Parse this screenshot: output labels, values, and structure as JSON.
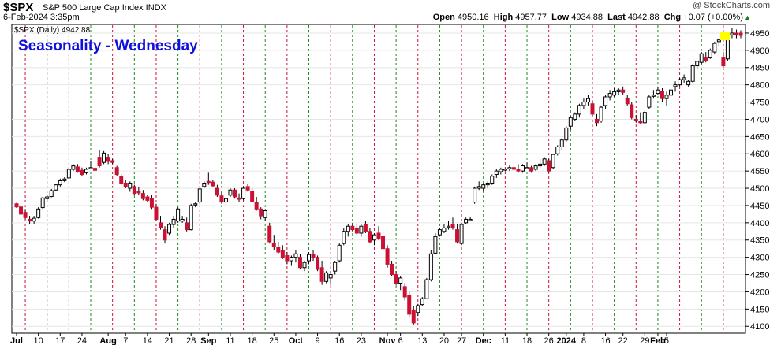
{
  "header": {
    "symbol": "$SPX",
    "description": "S&P 500 Large Cap Index  INDX",
    "watermark": "@ StockCharts.com",
    "date": "6-Feb-2024 3:35pm",
    "open_label": "Open",
    "open": "4950.16",
    "high_label": "High",
    "high": "4957.77",
    "low_label": "Low",
    "low": "4934.88",
    "last_label": "Last",
    "last": "4942.88",
    "chg_label": "Chg",
    "chg": "+0.07 (+0.00%)",
    "chg_icon": "up-triangle-icon"
  },
  "chart_data": {
    "type": "candlestick",
    "title": "Seasonality - Wednesday",
    "legend": "$SPX (Daily) 4942.88",
    "y_ticks": [
      4100,
      4150,
      4200,
      4250,
      4300,
      4350,
      4400,
      4450,
      4500,
      4550,
      4600,
      4650,
      4700,
      4750,
      4800,
      4850,
      4900,
      4950
    ],
    "ylim": [
      4080,
      4975
    ],
    "x_tick_labels": [
      {
        "label": "Jul",
        "bold": true,
        "i": 0
      },
      {
        "label": "10",
        "i": 5
      },
      {
        "label": "17",
        "i": 10
      },
      {
        "label": "24",
        "i": 15
      },
      {
        "label": "Aug",
        "bold": true,
        "i": 21
      },
      {
        "label": "7",
        "i": 25
      },
      {
        "label": "14",
        "i": 30
      },
      {
        "label": "21",
        "i": 35
      },
      {
        "label": "28",
        "i": 40
      },
      {
        "label": "Sep",
        "bold": true,
        "i": 44
      },
      {
        "label": "11",
        "i": 49
      },
      {
        "label": "18",
        "i": 54
      },
      {
        "label": "25",
        "i": 59
      },
      {
        "label": "Oct",
        "bold": true,
        "i": 64
      },
      {
        "label": "9",
        "i": 69
      },
      {
        "label": "16",
        "i": 74
      },
      {
        "label": "23",
        "i": 79
      },
      {
        "label": "Nov",
        "bold": true,
        "i": 85
      },
      {
        "label": "6",
        "i": 88
      },
      {
        "label": "13",
        "i": 93
      },
      {
        "label": "20",
        "i": 98
      },
      {
        "label": "27",
        "i": 102
      },
      {
        "label": "Dec",
        "bold": true,
        "i": 107
      },
      {
        "label": "11",
        "i": 112
      },
      {
        "label": "18",
        "i": 117
      },
      {
        "label": "26",
        "i": 122
      },
      {
        "label": "2024",
        "bold": true,
        "i": 126
      },
      {
        "label": "8",
        "i": 130
      },
      {
        "label": "16",
        "i": 135
      },
      {
        "label": "22",
        "i": 139
      },
      {
        "label": "29",
        "i": 144
      },
      {
        "label": "Feb",
        "bold": true,
        "i": 147
      },
      {
        "label": "5",
        "i": 149
      }
    ],
    "wednesday_colors": {
      "down": "#cc1133",
      "up": "#1a8a1a"
    },
    "candles": [
      [
        4455,
        4458,
        4443,
        4446
      ],
      [
        4446,
        4450,
        4420,
        4425
      ],
      [
        4430,
        4440,
        4410,
        4415
      ],
      [
        4410,
        4420,
        4395,
        4405
      ],
      [
        4405,
        4420,
        4395,
        4413
      ],
      [
        4415,
        4445,
        4412,
        4440
      ],
      [
        4444,
        4475,
        4440,
        4472
      ],
      [
        4470,
        4480,
        4465,
        4475
      ],
      [
        4476,
        4498,
        4474,
        4493
      ],
      [
        4495,
        4512,
        4493,
        4510
      ],
      [
        4510,
        4528,
        4505,
        4522
      ],
      [
        4522,
        4532,
        4518,
        4527
      ],
      [
        4530,
        4560,
        4528,
        4555
      ],
      [
        4555,
        4570,
        4550,
        4565
      ],
      [
        4562,
        4570,
        4545,
        4548
      ],
      [
        4552,
        4560,
        4535,
        4540
      ],
      [
        4545,
        4560,
        4540,
        4555
      ],
      [
        4560,
        4578,
        4555,
        4560
      ],
      [
        4558,
        4570,
        4545,
        4552
      ],
      [
        4590,
        4610,
        4560,
        4565
      ],
      [
        4575,
        4608,
        4570,
        4602
      ],
      [
        4590,
        4600,
        4570,
        4578
      ],
      [
        4580,
        4585,
        4570,
        4575
      ],
      [
        4560,
        4565,
        4535,
        4540
      ],
      [
        4535,
        4540,
        4510,
        4515
      ],
      [
        4515,
        4525,
        4500,
        4505
      ],
      [
        4500,
        4520,
        4490,
        4515
      ],
      [
        4505,
        4510,
        4480,
        4485
      ],
      [
        4490,
        4505,
        4480,
        4487
      ],
      [
        4485,
        4495,
        4465,
        4470
      ],
      [
        4475,
        4480,
        4460,
        4465
      ],
      [
        4470,
        4480,
        4440,
        4445
      ],
      [
        4445,
        4455,
        4405,
        4410
      ],
      [
        4400,
        4420,
        4380,
        4385
      ],
      [
        4380,
        4390,
        4340,
        4350
      ],
      [
        4370,
        4400,
        4365,
        4395
      ],
      [
        4395,
        4420,
        4385,
        4410
      ],
      [
        4405,
        4445,
        4400,
        4440
      ],
      [
        4405,
        4420,
        4400,
        4410
      ],
      [
        4400,
        4415,
        4375,
        4380
      ],
      [
        4380,
        4455,
        4378,
        4450
      ],
      [
        4452,
        4460,
        4445,
        4455
      ],
      [
        4460,
        4500,
        4455,
        4498
      ],
      [
        4505,
        4520,
        4500,
        4515
      ],
      [
        4520,
        4545,
        4510,
        4518
      ],
      [
        4518,
        4525,
        4505,
        4507
      ],
      [
        4500,
        4510,
        4475,
        4480
      ],
      [
        4478,
        4490,
        4455,
        4460
      ],
      [
        4460,
        4475,
        4450,
        4470
      ],
      [
        4480,
        4500,
        4475,
        4495
      ],
      [
        4495,
        4500,
        4470,
        4475
      ],
      [
        4472,
        4485,
        4460,
        4468
      ],
      [
        4470,
        4505,
        4465,
        4500
      ],
      [
        4505,
        4512,
        4490,
        4495
      ],
      [
        4490,
        4500,
        4460,
        4462
      ],
      [
        4460,
        4475,
        4435,
        4440
      ],
      [
        4440,
        4445,
        4410,
        4420
      ],
      [
        4415,
        4440,
        4405,
        4435
      ],
      [
        4390,
        4400,
        4340,
        4345
      ],
      [
        4340,
        4365,
        4320,
        4330
      ],
      [
        4330,
        4345,
        4310,
        4315
      ],
      [
        4320,
        4335,
        4295,
        4300
      ],
      [
        4305,
        4315,
        4280,
        4290
      ],
      [
        4290,
        4305,
        4275,
        4300
      ],
      [
        4300,
        4320,
        4285,
        4310
      ],
      [
        4300,
        4310,
        4265,
        4270
      ],
      [
        4270,
        4290,
        4260,
        4285
      ],
      [
        4290,
        4315,
        4280,
        4308
      ],
      [
        4308,
        4320,
        4290,
        4300
      ],
      [
        4300,
        4305,
        4260,
        4265
      ],
      [
        4270,
        4290,
        4220,
        4230
      ],
      [
        4230,
        4260,
        4225,
        4255
      ],
      [
        4240,
        4260,
        4220,
        4250
      ],
      [
        4260,
        4290,
        4250,
        4285
      ],
      [
        4290,
        4340,
        4285,
        4335
      ],
      [
        4340,
        4385,
        4335,
        4375
      ],
      [
        4375,
        4395,
        4360,
        4390
      ],
      [
        4390,
        4400,
        4375,
        4380
      ],
      [
        4385,
        4395,
        4365,
        4370
      ],
      [
        4370,
        4395,
        4360,
        4390
      ],
      [
        4395,
        4405,
        4370,
        4375
      ],
      [
        4375,
        4385,
        4340,
        4345
      ],
      [
        4350,
        4370,
        4335,
        4365
      ],
      [
        4370,
        4390,
        4350,
        4355
      ],
      [
        4360,
        4375,
        4320,
        4325
      ],
      [
        4325,
        4335,
        4270,
        4280
      ],
      [
        4280,
        4290,
        4245,
        4250
      ],
      [
        4250,
        4260,
        4220,
        4225
      ],
      [
        4225,
        4245,
        4205,
        4240
      ],
      [
        4215,
        4225,
        4175,
        4185
      ],
      [
        4190,
        4200,
        4125,
        4135
      ],
      [
        4145,
        4160,
        4105,
        4110
      ],
      [
        4140,
        4165,
        4130,
        4160
      ],
      [
        4163,
        4185,
        4160,
        4180
      ],
      [
        4180,
        4240,
        4178,
        4235
      ],
      [
        4235,
        4320,
        4230,
        4310
      ],
      [
        4312,
        4370,
        4310,
        4360
      ],
      [
        4365,
        4385,
        4360,
        4380
      ],
      [
        4375,
        4395,
        4370,
        4385
      ],
      [
        4388,
        4405,
        4380,
        4390
      ],
      [
        4395,
        4415,
        4380,
        4385
      ],
      [
        4380,
        4395,
        4340,
        4345
      ],
      [
        4340,
        4400,
        4335,
        4395
      ],
      [
        4400,
        4415,
        4395,
        4410
      ],
      [
        4410,
        4418,
        4405,
        4410
      ],
      [
        4460,
        4505,
        4455,
        4500
      ],
      [
        4500,
        4520,
        4495,
        4505
      ],
      [
        4500,
        4515,
        4490,
        4510
      ],
      [
        4510,
        4520,
        4500,
        4515
      ],
      [
        4515,
        4540,
        4510,
        4535
      ],
      [
        4540,
        4555,
        4530,
        4550
      ],
      [
        4548,
        4560,
        4540,
        4555
      ],
      [
        4556,
        4558,
        4549,
        4556
      ],
      [
        4556,
        4566,
        4550,
        4560
      ],
      [
        4560,
        4565,
        4552,
        4555
      ],
      [
        4555,
        4570,
        4545,
        4550
      ],
      [
        4550,
        4570,
        4545,
        4565
      ],
      [
        4560,
        4575,
        4555,
        4560
      ],
      [
        4560,
        4565,
        4545,
        4550
      ],
      [
        4555,
        4570,
        4550,
        4565
      ],
      [
        4565,
        4585,
        4560,
        4570
      ],
      [
        4570,
        4590,
        4565,
        4585
      ],
      [
        4580,
        4585,
        4545,
        4550
      ],
      [
        4560,
        4600,
        4555,
        4598
      ],
      [
        4600,
        4625,
        4595,
        4620
      ],
      [
        4620,
        4645,
        4610,
        4640
      ],
      [
        4640,
        4680,
        4635,
        4675
      ],
      [
        4680,
        4710,
        4670,
        4705
      ],
      [
        4700,
        4720,
        4695,
        4715
      ],
      [
        4715,
        4745,
        4705,
        4740
      ],
      [
        4740,
        4760,
        4730,
        4750
      ],
      [
        4750,
        4770,
        4740,
        4760
      ],
      [
        4745,
        4755,
        4710,
        4715
      ],
      [
        4700,
        4715,
        4680,
        4690
      ],
      [
        4695,
        4740,
        4690,
        4735
      ],
      [
        4740,
        4770,
        4730,
        4765
      ],
      [
        4765,
        4785,
        4755,
        4775
      ],
      [
        4770,
        4790,
        4765,
        4780
      ],
      [
        4780,
        4790,
        4770,
        4785
      ],
      [
        4785,
        4795,
        4772,
        4778
      ],
      [
        4760,
        4770,
        4740,
        4745
      ],
      [
        4742,
        4750,
        4700,
        4705
      ],
      [
        4700,
        4712,
        4690,
        4698
      ],
      [
        4695,
        4720,
        4685,
        4690
      ],
      [
        4690,
        4725,
        4688,
        4720
      ],
      [
        4735,
        4770,
        4730,
        4765
      ],
      [
        4770,
        4785,
        4760,
        4770
      ],
      [
        4775,
        4795,
        4770,
        4785
      ],
      [
        4780,
        4790,
        4750,
        4760
      ],
      [
        4760,
        4780,
        4740,
        4770
      ],
      [
        4770,
        4790,
        4745,
        4785
      ],
      [
        4795,
        4810,
        4780,
        4800
      ],
      [
        4800,
        4820,
        4795,
        4815
      ],
      [
        4815,
        4830,
        4805,
        4820
      ],
      [
        4800,
        4815,
        4795,
        4810
      ],
      [
        4810,
        4860,
        4805,
        4855
      ],
      [
        4855,
        4870,
        4845,
        4868
      ],
      [
        4865,
        4895,
        4860,
        4890
      ],
      [
        4880,
        4895,
        4865,
        4870
      ],
      [
        4880,
        4905,
        4875,
        4900
      ],
      [
        4895,
        4925,
        4890,
        4920
      ],
      [
        4925,
        4935,
        4910,
        4930
      ],
      [
        4880,
        4895,
        4850,
        4855
      ],
      [
        4875,
        4945,
        4870,
        4940
      ],
      [
        4945,
        4965,
        4935,
        4950
      ],
      [
        4950,
        4960,
        4935,
        4945
      ],
      [
        4950,
        4958,
        4935,
        4943
      ]
    ]
  }
}
